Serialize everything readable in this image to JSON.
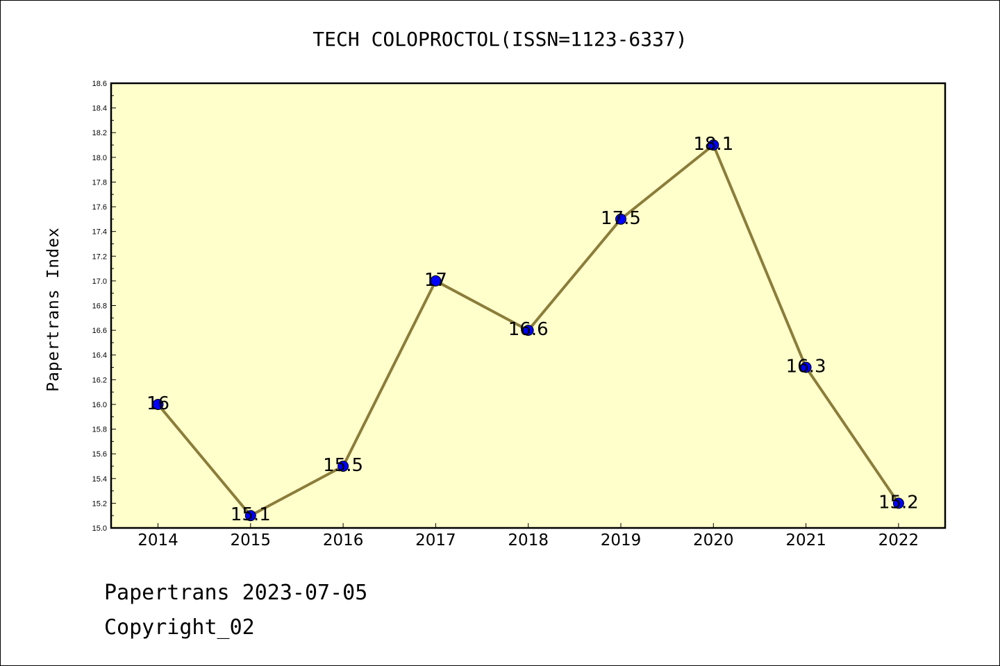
{
  "colors": {
    "plot_background": "#ffffcc",
    "line": "#8b7d3a",
    "marker": "#0000ff"
  },
  "chart_data": {
    "type": "line",
    "title": "TECH COLOPROCTOL(ISSN=1123-6337)",
    "xlabel": "",
    "ylabel": "Papertrans Index",
    "categories": [
      "2014",
      "2015",
      "2016",
      "2017",
      "2018",
      "2019",
      "2020",
      "2021",
      "2022"
    ],
    "values": [
      16.0,
      15.1,
      15.5,
      17.0,
      16.6,
      17.5,
      18.1,
      16.3,
      15.2
    ],
    "data_labels": [
      "16",
      "15.1",
      "15.5",
      "17",
      "16.6",
      "17.5",
      "18.1",
      "16.3",
      "15.2"
    ],
    "ylim": [
      15.0,
      18.6
    ],
    "yticks": [
      "15.0",
      "15.2",
      "15.4",
      "15.6",
      "15.8",
      "16.0",
      "16.2",
      "16.4",
      "16.6",
      "16.8",
      "17.0",
      "17.2",
      "17.4",
      "17.6",
      "17.8",
      "18.0",
      "18.2",
      "18.4",
      "18.6"
    ],
    "grid": false,
    "legend": "none"
  },
  "footer": {
    "line1": "Papertrans 2023-07-05",
    "line2": "Copyright_02"
  }
}
